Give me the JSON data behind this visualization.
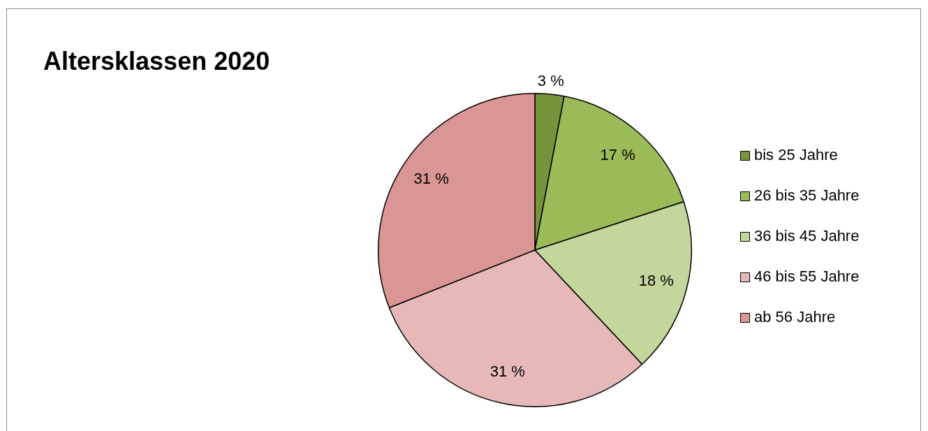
{
  "chart_data": {
    "type": "pie",
    "title": "Altersklassen 2020",
    "categories": [
      "bis 25 Jahre",
      "26 bis 35 Jahre",
      "36 bis 45 Jahre",
      "46 bis 55 Jahre",
      "ab 56 Jahre"
    ],
    "values": [
      3,
      17,
      18,
      31,
      31
    ],
    "value_labels": [
      "3 %",
      "17 %",
      "18 %",
      "31 %",
      "31 %"
    ],
    "colors": [
      "#77933c",
      "#9bbb59",
      "#c3d69b",
      "#e6b9b8",
      "#d99694"
    ],
    "legend": "right"
  }
}
